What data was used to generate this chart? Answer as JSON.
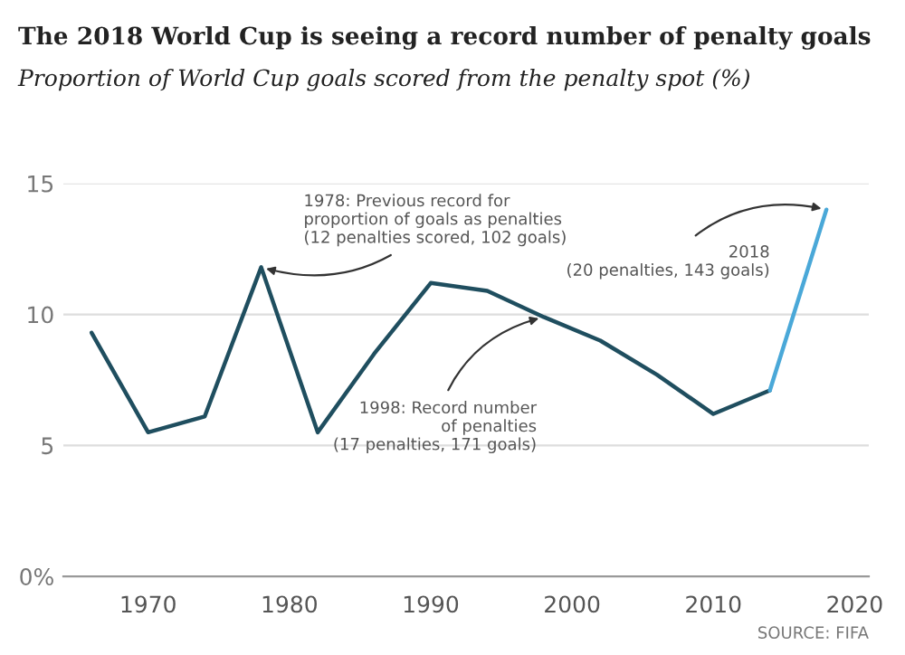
{
  "chart_data": {
    "type": "line",
    "title": "The 2018 World Cup is seeing a record number of penalty goals",
    "subtitle": "Proportion of World Cup goals scored from the penalty spot (%)",
    "x": [
      1966,
      1970,
      1974,
      1978,
      1982,
      1986,
      1990,
      1994,
      1998,
      2002,
      2006,
      2010,
      2014,
      2018
    ],
    "series": [
      {
        "color": "#1f4e5f",
        "values": [
          9.3,
          5.5,
          6.1,
          11.8,
          5.5,
          8.5,
          11.2,
          10.9,
          9.9,
          9.0,
          7.7,
          6.2,
          7.1,
          null
        ]
      },
      {
        "color": "#4aa8d8",
        "values": [
          null,
          null,
          null,
          null,
          null,
          null,
          null,
          null,
          null,
          null,
          null,
          null,
          7.1,
          14.0
        ]
      }
    ],
    "xlim": [
      1964,
      2021
    ],
    "xticks": [
      1970,
      1980,
      1990,
      2000,
      2010,
      2020
    ],
    "ylim": [
      0,
      15
    ],
    "yticks": [
      {
        "value": 0,
        "label": "0%"
      },
      5,
      10,
      15
    ],
    "grid": "y",
    "marker": "none",
    "line_style": "solid",
    "legend": false,
    "annotations": [
      {
        "text": "1978: Previous record for\nproportion of goals as penalties\n(12 penalties scored, 102 goals)",
        "x": 1978,
        "y": 11.8
      },
      {
        "text": "1998: Record number\nof penalties\n(17 penalties, 171 goals)",
        "x": 1998,
        "y": 9.9
      },
      {
        "text": "2018\n(20 penalties, 143 goals)",
        "x": 2018,
        "y": 14.0
      },
      "SOURCE: FIFA"
    ]
  }
}
